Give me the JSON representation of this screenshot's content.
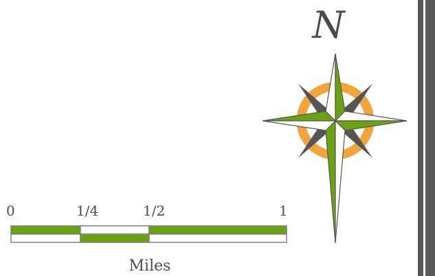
{
  "north_arrow": {
    "label": "N",
    "icon": "compass-rose-icon",
    "colors": {
      "star_green": "#6aa210",
      "ring_orange": "#f2a33a",
      "star_white": "#ffffff",
      "outline": "#555555"
    }
  },
  "scale_bar": {
    "ticks": [
      "0",
      "1/4",
      "1/2",
      "1"
    ],
    "units": "Miles",
    "colors": {
      "fill": "#6aa210",
      "empty": "#ffffff",
      "outline": "#7f7f7f"
    }
  },
  "frame": {
    "border_color": "#595959"
  }
}
